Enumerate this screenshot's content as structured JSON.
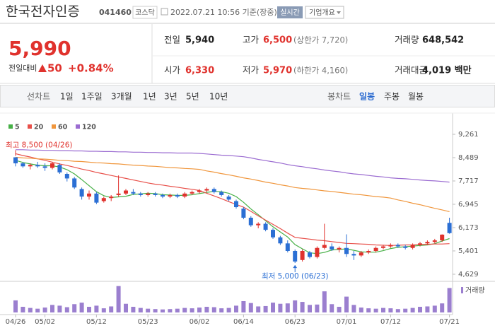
{
  "header": {
    "name": "한국전자인증",
    "code": "041460",
    "market": "코스닥",
    "datetime": "2022.07.21 10:56 기준(장중)",
    "realtime_button": "실시간",
    "company_button": "기업개요"
  },
  "quote": {
    "price": "5,990",
    "change_label": "전일대비",
    "change": "50",
    "change_rate": "+0.84%",
    "table": [
      [
        {
          "label": "전일",
          "value": "5,940"
        },
        {
          "label": "고가",
          "value": "6,500",
          "note": "(상한가 7,720)"
        },
        {
          "label": "거래량",
          "value": "648,542"
        }
      ],
      [
        {
          "label": "시가",
          "value": "6,330"
        },
        {
          "label": "저가",
          "value": "5,970",
          "note": "(하한가 4,160)"
        },
        {
          "label": "거래대금",
          "value": "4,019 백만"
        }
      ]
    ]
  },
  "tabs": {
    "line_label": "선차트",
    "periods": [
      "1일",
      "1주일",
      "3개월",
      "1년",
      "3년",
      "5년",
      "10년"
    ],
    "candle_label": "봉차트",
    "candles": [
      "일봉",
      "주봉",
      "월봉"
    ],
    "active_candle": "일봉"
  },
  "chart_data": {
    "type": "candlestick",
    "categories": [
      "04/26",
      null,
      null,
      null,
      "05/02",
      null,
      null,
      null,
      null,
      null,
      null,
      "05/12",
      null,
      null,
      null,
      null,
      null,
      null,
      "05/23",
      null,
      null,
      null,
      null,
      null,
      null,
      "06/02",
      null,
      null,
      null,
      null,
      null,
      "06/14",
      null,
      null,
      null,
      null,
      null,
      null,
      "06/23",
      null,
      null,
      null,
      null,
      null,
      null,
      "07/01",
      null,
      null,
      null,
      null,
      null,
      "07/12",
      null,
      null,
      null,
      null,
      null,
      null,
      null,
      "07/21"
    ],
    "open": [
      8500,
      8300,
      8200,
      8250,
      8200,
      8150,
      8250,
      7950,
      7800,
      7450,
      7200,
      7300,
      7050,
      7150,
      7250,
      7300,
      7350,
      7300,
      7250,
      7300,
      7250,
      7200,
      7250,
      7200,
      7300,
      7350,
      7400,
      7450,
      7350,
      7200,
      7050,
      6800,
      6500,
      6250,
      6300,
      6100,
      5850,
      5650,
      5400,
      5100,
      5350,
      5200,
      5500,
      5550,
      5450,
      5500,
      5300,
      5250,
      5350,
      5400,
      5500,
      5550,
      5600,
      5550,
      5500,
      5600,
      5650,
      5700,
      5750,
      6330
    ],
    "high": [
      8500,
      8350,
      8300,
      8350,
      8300,
      8350,
      8300,
      8000,
      7850,
      7500,
      7400,
      7350,
      7200,
      7250,
      7900,
      7450,
      7450,
      7350,
      7350,
      7350,
      7300,
      7300,
      7300,
      7350,
      7400,
      7450,
      7500,
      7500,
      7400,
      7250,
      7100,
      6850,
      6550,
      6350,
      6350,
      6150,
      5900,
      5750,
      5450,
      5450,
      5400,
      5550,
      6300,
      5650,
      5550,
      5950,
      5400,
      5400,
      5450,
      5550,
      5600,
      5650,
      5650,
      5600,
      5650,
      5700,
      5750,
      5800,
      5950,
      6500
    ],
    "low": [
      8200,
      8150,
      8100,
      8150,
      8050,
      8100,
      7950,
      7700,
      7450,
      7100,
      7100,
      6950,
      7000,
      7050,
      7200,
      7250,
      7250,
      7200,
      7200,
      7200,
      7150,
      7150,
      7150,
      7150,
      7250,
      7300,
      7350,
      7300,
      7200,
      7050,
      6800,
      6450,
      6200,
      6150,
      6050,
      5800,
      5600,
      5350,
      5000,
      5050,
      5150,
      5150,
      5450,
      5400,
      5350,
      5200,
      5100,
      5200,
      5300,
      5350,
      5450,
      5500,
      5500,
      5450,
      5450,
      5550,
      5600,
      5650,
      5700,
      5970
    ],
    "close": [
      8300,
      8200,
      8250,
      8200,
      8150,
      8300,
      8000,
      7800,
      7500,
      7200,
      7300,
      7000,
      7150,
      7200,
      7300,
      7400,
      7300,
      7250,
      7300,
      7250,
      7200,
      7250,
      7200,
      7300,
      7350,
      7400,
      7450,
      7350,
      7250,
      7100,
      6850,
      6500,
      6250,
      6300,
      6100,
      5850,
      5650,
      5400,
      5050,
      5400,
      5200,
      5500,
      5600,
      5450,
      5500,
      5300,
      5250,
      5350,
      5400,
      5500,
      5550,
      5600,
      5550,
      5500,
      5600,
      5650,
      5700,
      5750,
      5940,
      5990
    ],
    "up_color": "#e0322d",
    "down_color": "#2b6fd4",
    "moving_averages": [
      {
        "name": "5",
        "color": "#46b046",
        "values": [
          8400,
          8330,
          8280,
          8240,
          8220,
          8220,
          8180,
          8090,
          7950,
          7760,
          7560,
          7360,
          7230,
          7170,
          7190,
          7210,
          7270,
          7290,
          7310,
          7300,
          7260,
          7250,
          7240,
          7240,
          7260,
          7300,
          7340,
          7370,
          7360,
          7310,
          7200,
          7010,
          6790,
          6600,
          6400,
          6200,
          6030,
          5860,
          5610,
          5470,
          5340,
          5310,
          5350,
          5430,
          5450,
          5470,
          5420,
          5370,
          5360,
          5360,
          5410,
          5480,
          5520,
          5540,
          5560,
          5580,
          5600,
          5640,
          5730,
          5810
        ]
      },
      {
        "name": "20",
        "color": "#e8504a",
        "values": [
          8620,
          8560,
          8510,
          8450,
          8400,
          8340,
          8280,
          8230,
          8170,
          8110,
          8060,
          8000,
          7950,
          7900,
          7850,
          7800,
          7750,
          7700,
          7650,
          7610,
          7580,
          7540,
          7510,
          7470,
          7440,
          7400,
          7310,
          7220,
          7130,
          7030,
          6940,
          6850,
          6710,
          6560,
          6420,
          6280,
          6140,
          5990,
          5850,
          5820,
          5790,
          5760,
          5740,
          5710,
          5680,
          5650,
          5640,
          5630,
          5620,
          5600,
          5590,
          5580,
          5590,
          5600,
          5600,
          5610,
          5620,
          5630,
          5630,
          5640
        ]
      },
      {
        "name": "60",
        "color": "#f0963c",
        "values": [
          8500,
          8480,
          8470,
          8450,
          8440,
          8420,
          8400,
          8390,
          8370,
          8360,
          8340,
          8320,
          8310,
          8290,
          8280,
          8260,
          8240,
          8230,
          8210,
          8200,
          8180,
          8160,
          8150,
          8130,
          8120,
          8100,
          8050,
          8010,
          7960,
          7920,
          7870,
          7820,
          7780,
          7730,
          7680,
          7640,
          7590,
          7550,
          7500,
          7470,
          7450,
          7420,
          7390,
          7370,
          7340,
          7310,
          7280,
          7260,
          7230,
          7200,
          7180,
          7150,
          7090,
          7040,
          6980,
          6930,
          6870,
          6810,
          6760,
          6700
        ]
      },
      {
        "name": "120",
        "color": "#9b6cd1",
        "values": [
          8750,
          8750,
          8740,
          8740,
          8730,
          8730,
          8720,
          8720,
          8710,
          8710,
          8700,
          8700,
          8690,
          8690,
          8680,
          8680,
          8670,
          8670,
          8660,
          8660,
          8650,
          8650,
          8640,
          8640,
          8640,
          8630,
          8610,
          8590,
          8570,
          8560,
          8540,
          8520,
          8480,
          8430,
          8390,
          8350,
          8310,
          8260,
          8220,
          8190,
          8150,
          8120,
          8080,
          8050,
          8020,
          7980,
          7950,
          7930,
          7900,
          7870,
          7850,
          7820,
          7800,
          7790,
          7770,
          7750,
          7730,
          7720,
          7700,
          7680
        ]
      }
    ],
    "volume": {
      "label": "거래량",
      "color": "#9b7fcf",
      "ylim": [
        0,
        750000
      ],
      "values": [
        320000,
        150000,
        120000,
        100000,
        130000,
        200000,
        180000,
        140000,
        220000,
        260000,
        150000,
        180000,
        110000,
        160000,
        700000,
        230000,
        150000,
        120000,
        100000,
        90000,
        80000,
        90000,
        100000,
        120000,
        110000,
        130000,
        150000,
        140000,
        110000,
        120000,
        180000,
        300000,
        250000,
        160000,
        170000,
        260000,
        230000,
        240000,
        320000,
        280000,
        200000,
        210000,
        560000,
        220000,
        150000,
        420000,
        200000,
        130000,
        110000,
        100000,
        120000,
        110000,
        90000,
        100000,
        120000,
        150000,
        160000,
        180000,
        240000,
        648542
      ]
    },
    "ylim": [
      4464,
      9495
    ],
    "yticks": [
      {
        "value": 4629,
        "label": "4,629"
      },
      {
        "value": 5401,
        "label": "5,401"
      },
      {
        "value": 6173,
        "label": "6,173"
      },
      {
        "value": 6945,
        "label": "6,945"
      },
      {
        "value": 7717,
        "label": "7,717"
      },
      {
        "value": 8489,
        "label": "8,489"
      },
      {
        "value": 9261,
        "label": "9,261"
      }
    ],
    "grid": false,
    "annotations": {
      "high": "최고 8,500 (04/26)",
      "low": "최저 5,000 (06/23)"
    }
  }
}
